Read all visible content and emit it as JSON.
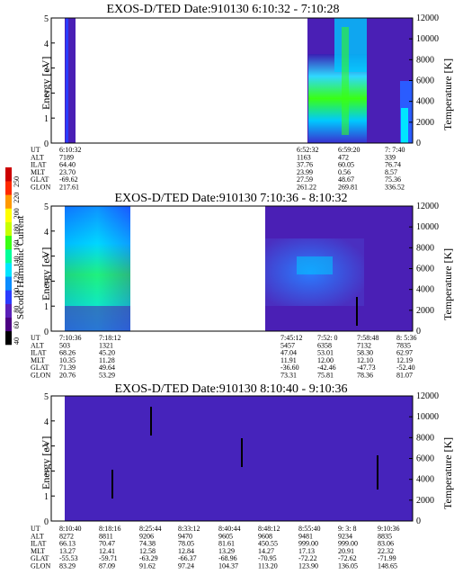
{
  "colors": {
    "background": "#4a1fb5",
    "frame": "#000000"
  },
  "colorbar": {
    "label": "Second Harmonic Current",
    "ticks": [
      "40",
      "60",
      "80",
      "100",
      "120",
      "140",
      "160",
      "180",
      "200",
      "220",
      "250"
    ],
    "colors": [
      "#000000",
      "#4b0082",
      "#5a1fb8",
      "#2a3cff",
      "#0a8cff",
      "#00e5ff",
      "#00ff9a",
      "#39ff14",
      "#c8ff00",
      "#ffff00",
      "#ff9900",
      "#ff2a00",
      "#cc0000"
    ]
  },
  "panels": [
    {
      "title": "EXOS-D/TED   Date:910130  6:10:32 - 7:10:28",
      "ylabel": "Energy [eV]",
      "y2label": "Temperature [K]",
      "table": {
        "row_labels": [
          "UT",
          "ALT",
          "ILAT",
          "MLT",
          "GLAT",
          "GLON"
        ],
        "columns": [
          [
            "6:10:32",
            "7189",
            "64.40",
            "23.70",
            "-69.62",
            "217.61"
          ],
          [
            "6:52:32",
            "1163",
            "37.76",
            "23.99",
            "27.59",
            "261.22"
          ],
          [
            "6:59:20",
            "472",
            "60.05",
            "0.56",
            "48.67",
            "269.81"
          ],
          [
            "7: 7:40",
            "339",
            "76.74",
            "8.57",
            "75.36",
            "336.52"
          ]
        ]
      }
    },
    {
      "title": "EXOS-D/TED   Date:910130  7:10:36 - 8:10:32",
      "ylabel": "Energy [eV]",
      "y2label": "Temperature [K]",
      "table": {
        "row_labels": [
          "UT",
          "ALT",
          "ILAT",
          "MLT",
          "GLAT",
          "GLON"
        ],
        "columns": [
          [
            "7:10:36",
            "503",
            "68.26",
            "10.35",
            "71.39",
            "20.76"
          ],
          [
            "7:18:12",
            "1321",
            "45.20",
            "11.28",
            "49.64",
            "53.29"
          ],
          [
            "7:45:12",
            "5457",
            "47.04",
            "11.91",
            "-36.60",
            "73.31"
          ],
          [
            "7:52: 0",
            "6358",
            "53.01",
            "12.00",
            "-42.46",
            "75.81"
          ],
          [
            "7:58:48",
            "7132",
            "58.30",
            "12.10",
            "-47.73",
            "78.36"
          ],
          [
            "8: 5:36",
            "7835",
            "62.97",
            "12.19",
            "-52.40",
            "81.07"
          ]
        ]
      }
    },
    {
      "title": "EXOS-D/TED   Date:910130  8:10:40 - 9:10:36",
      "ylabel": "Energy [eV]",
      "y2label": "Temperature [K]",
      "table": {
        "row_labels": [
          "UT",
          "ALT",
          "ILAT",
          "MLT",
          "GLAT",
          "GLON"
        ],
        "columns": [
          [
            "8:10:40",
            "8272",
            "66.13",
            "13.27",
            "-55.53",
            "83.29"
          ],
          [
            "8:18:16",
            "8811",
            "70.47",
            "12.41",
            "-59.71",
            "87.09"
          ],
          [
            "8:25:44",
            "9206",
            "74.38",
            "12.58",
            "-63.29",
            "91.62"
          ],
          [
            "8:33:12",
            "9470",
            "78.05",
            "12.84",
            "-66.37",
            "97.24"
          ],
          [
            "8:40:44",
            "9605",
            "81.61",
            "13.29",
            "-68.96",
            "104.37"
          ],
          [
            "8:48:12",
            "9608",
            "450.55",
            "14.27",
            "-70.95",
            "113.20"
          ],
          [
            "8:55:40",
            "9481",
            "999.00",
            "17.13",
            "-72.22",
            "123.90"
          ],
          [
            "9: 3: 8",
            "9234",
            "999.00",
            "20.91",
            "-72.62",
            "136.05"
          ],
          [
            "9:10:36",
            "8835",
            "83.06",
            "22.32",
            "-71.99",
            "148.65"
          ]
        ]
      }
    }
  ],
  "chart_data": [
    {
      "type": "heatmap",
      "title": "EXOS-D/TED   Date:910130  6:10:32 - 7:10:28",
      "ylabel": "Energy [eV]",
      "y2label": "Temperature [K]",
      "ylim": [
        0,
        5
      ],
      "y2lim": [
        0,
        12000
      ],
      "yticks": [
        0,
        1,
        2,
        3,
        4,
        5
      ],
      "y2ticks": [
        0,
        2000,
        4000,
        6000,
        8000,
        10000,
        12000
      ]
    },
    {
      "type": "heatmap",
      "title": "EXOS-D/TED   Date:910130  7:10:36 - 8:10:32",
      "ylabel": "Energy [eV]",
      "y2label": "Temperature [K]",
      "ylim": [
        0,
        5
      ],
      "y2lim": [
        0,
        12000
      ],
      "yticks": [
        0,
        1,
        2,
        3,
        4,
        5
      ],
      "y2ticks": [
        0,
        2000,
        4000,
        6000,
        8000,
        10000,
        12000
      ]
    },
    {
      "type": "heatmap",
      "title": "EXOS-D/TED   Date:910130  8:10:40 - 9:10:36",
      "ylabel": "Energy [eV]",
      "y2label": "Temperature [K]",
      "ylim": [
        0,
        5
      ],
      "y2lim": [
        0,
        12000
      ],
      "yticks": [
        0,
        1,
        2,
        3,
        4,
        5
      ],
      "y2ticks": [
        0,
        2000,
        4000,
        6000,
        8000,
        10000,
        12000
      ]
    }
  ]
}
